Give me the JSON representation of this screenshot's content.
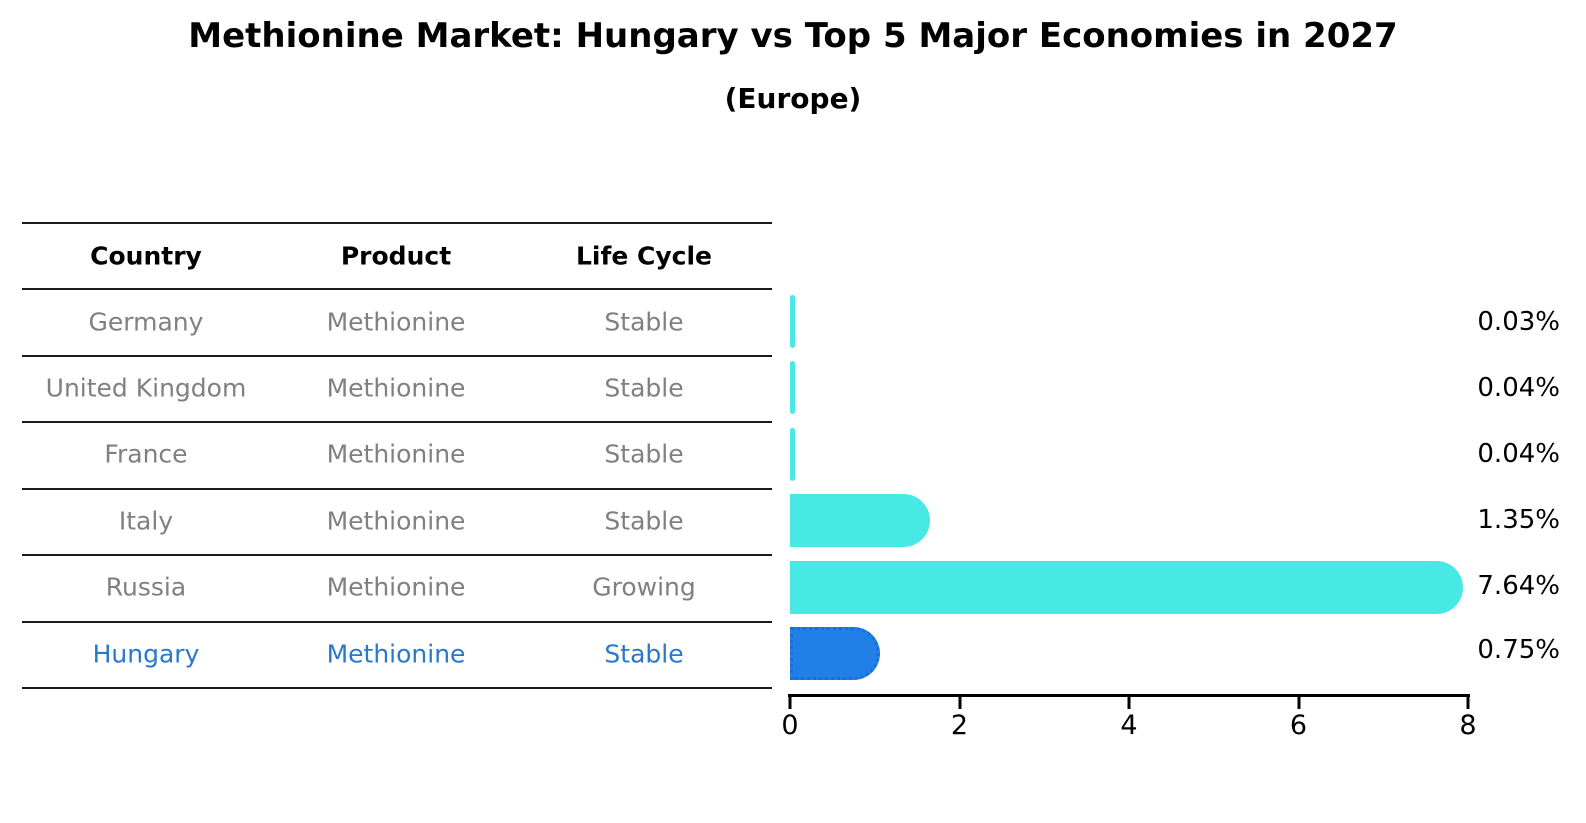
{
  "chart_data": {
    "type": "bar",
    "orientation": "horizontal",
    "title": "Methionine Market: Hungary vs Top 5 Major Economies in 2027",
    "subtitle": "(Europe)",
    "categories": [
      "Germany",
      "United Kingdom",
      "France",
      "Italy",
      "Russia",
      "Hungary"
    ],
    "values": [
      0.03,
      0.04,
      0.04,
      1.35,
      7.64,
      0.75
    ],
    "labels": [
      "0.03%",
      "0.04%",
      "0.04%",
      "1.35%",
      "7.64%",
      "0.75%"
    ],
    "xlim": [
      0,
      8
    ],
    "xticks": [
      0,
      2,
      4,
      6,
      8
    ],
    "grid": false,
    "legend": "none",
    "highlight_category": "Hungary"
  },
  "table": {
    "headers": [
      "Country",
      "Product",
      "Life Cycle"
    ],
    "rows": [
      {
        "country": "Germany",
        "product": "Methionine",
        "life_cycle": "Stable",
        "highlighted": false
      },
      {
        "country": "United Kingdom",
        "product": "Methionine",
        "life_cycle": "Stable",
        "highlighted": false
      },
      {
        "country": "France",
        "product": "Methionine",
        "life_cycle": "Stable",
        "highlighted": false
      },
      {
        "country": "Italy",
        "product": "Methionine",
        "life_cycle": "Stable",
        "highlighted": false
      },
      {
        "country": "Russia",
        "product": "Methionine",
        "life_cycle": "Growing",
        "highlighted": false
      },
      {
        "country": "Hungary",
        "product": "Methionine",
        "life_cycle": "Stable",
        "highlighted": true
      }
    ]
  },
  "colors": {
    "bar": "#48E8E4",
    "highlight_bar": "#2080E8",
    "highlight_bar_border": "#1B6FD2",
    "highlight_text": "#2878CC",
    "muted_text": "#808080",
    "heading_text": "#000000"
  }
}
